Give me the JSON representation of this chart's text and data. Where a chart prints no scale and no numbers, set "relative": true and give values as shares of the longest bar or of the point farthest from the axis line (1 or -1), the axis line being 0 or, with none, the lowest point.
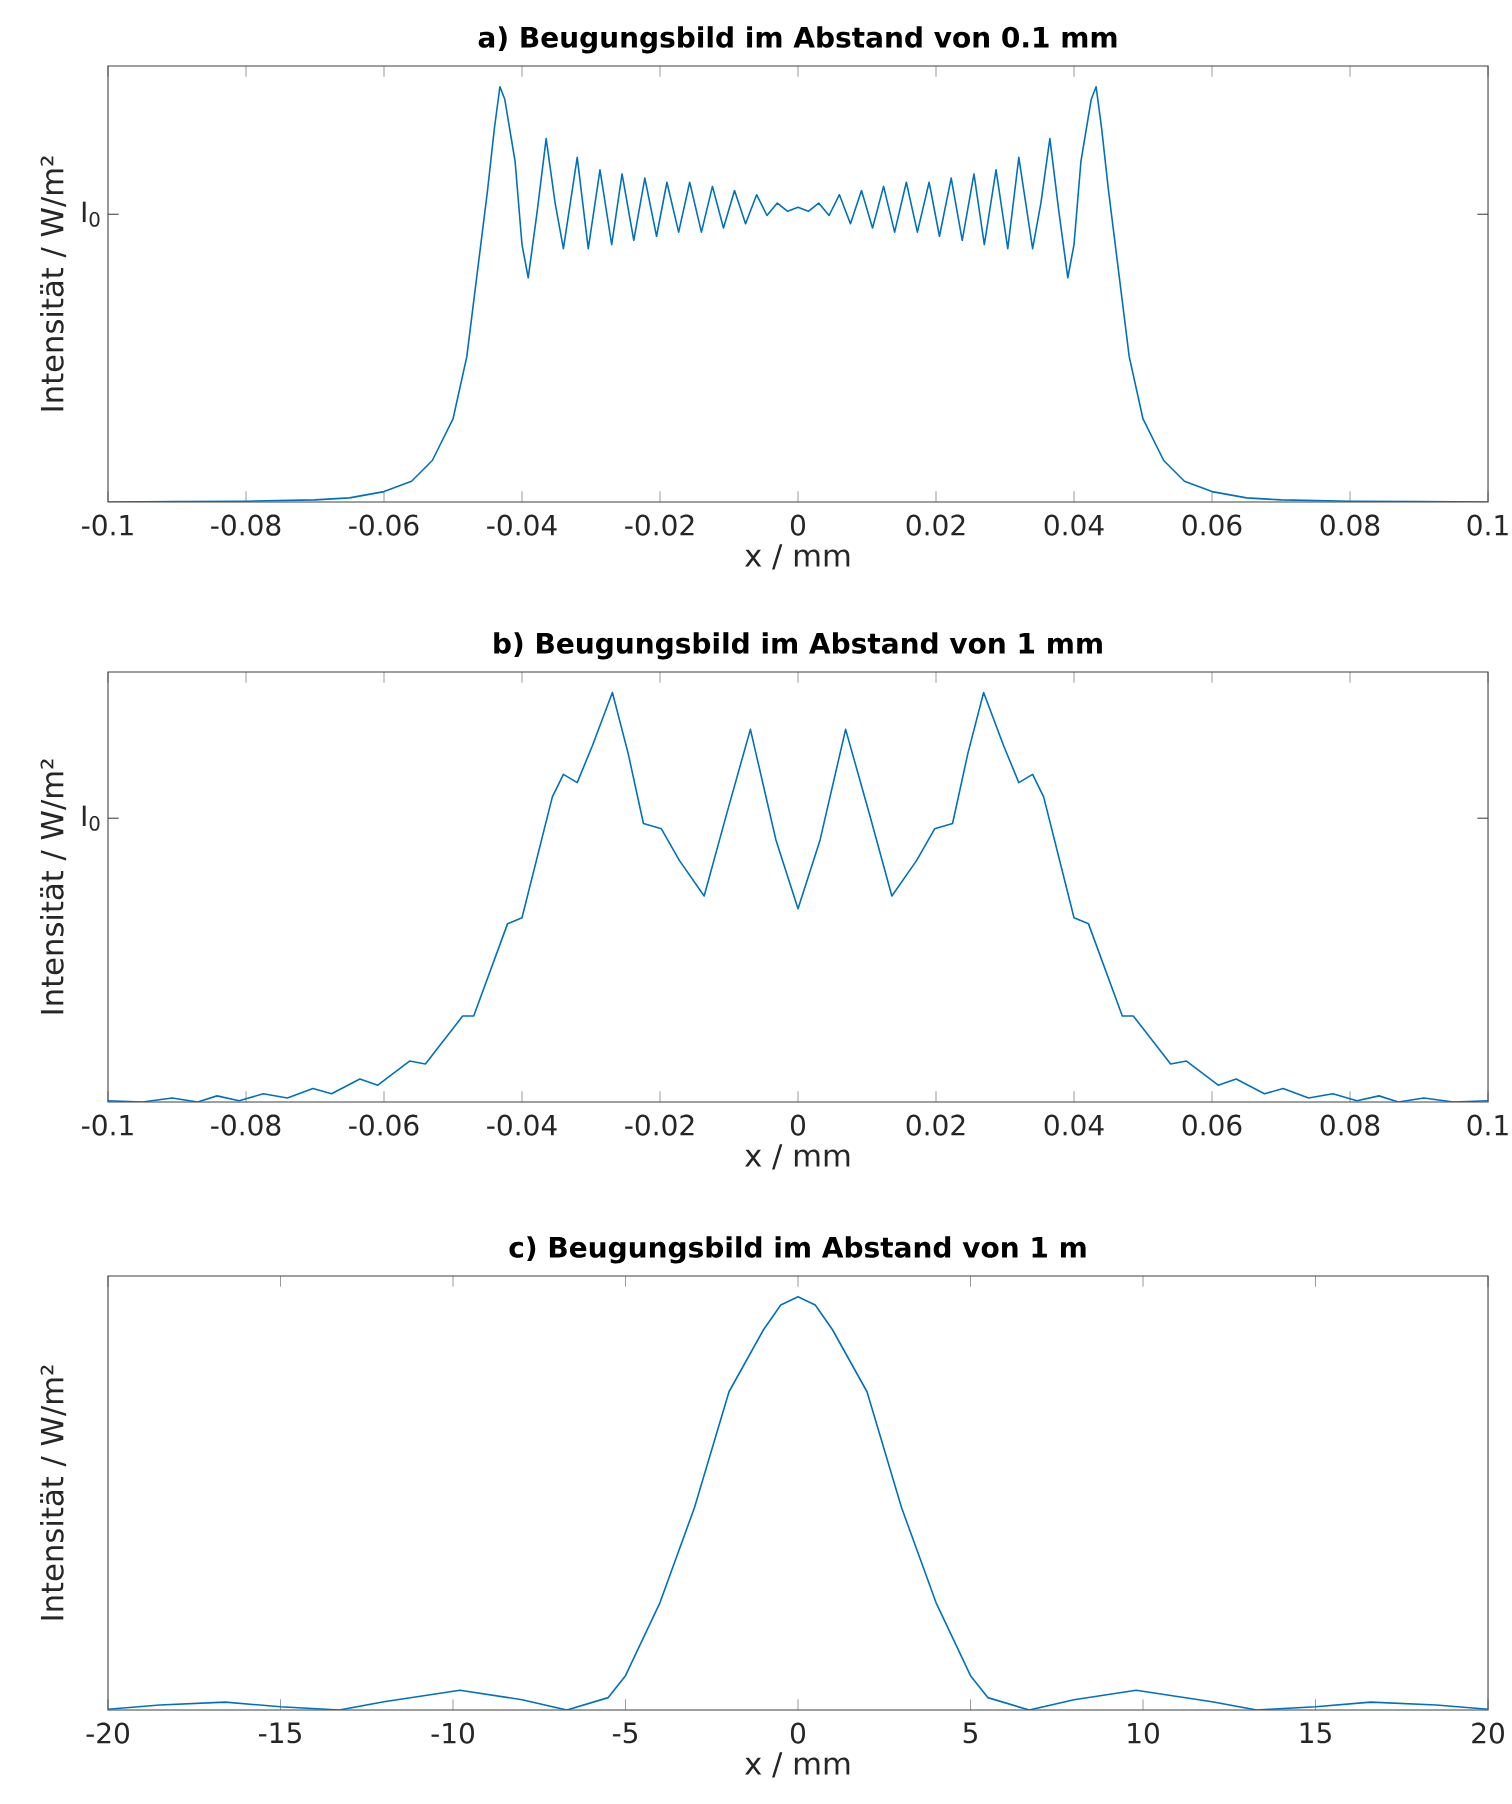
{
  "chart_data": [
    {
      "type": "line",
      "title": "a) Beugungsbild im Abstand von 0.1 mm",
      "xlabel": "x / mm",
      "ylabel": "Intensität / W/m²",
      "relative": true,
      "xlim": [
        -0.1,
        0.1
      ],
      "xticks": [
        -0.1,
        -0.08,
        -0.06,
        -0.04,
        -0.02,
        0,
        0.02,
        0.04,
        0.06,
        0.08,
        0.1
      ],
      "annotations": [
        "I$_{0}$"
      ],
      "x": [
        -0.1,
        -0.09,
        -0.08,
        -0.07,
        -0.065,
        -0.06,
        -0.056,
        -0.053,
        -0.05,
        -0.048,
        -0.0465,
        -0.045,
        -0.044,
        -0.0432,
        -0.0425,
        -0.041,
        -0.04,
        -0.0391,
        -0.0378,
        -0.0365,
        -0.0352,
        -0.034,
        -0.032,
        -0.0304,
        -0.0287,
        -0.027,
        -0.0255,
        -0.0238,
        -0.0222,
        -0.0205,
        -0.019,
        -0.0173,
        -0.0157,
        -0.014,
        -0.0124,
        -0.0108,
        -0.0092,
        -0.0076,
        -0.006,
        -0.0045,
        -0.003,
        -0.0015,
        0,
        0.0015,
        0.003,
        0.0045,
        0.006,
        0.0076,
        0.0092,
        0.0108,
        0.0124,
        0.014,
        0.0157,
        0.0173,
        0.019,
        0.0205,
        0.0222,
        0.0238,
        0.0255,
        0.027,
        0.0287,
        0.0304,
        0.032,
        0.034,
        0.0352,
        0.0365,
        0.0378,
        0.0391,
        0.04,
        0.041,
        0.0425,
        0.0432,
        0.044,
        0.045,
        0.0465,
        0.048,
        0.05,
        0.053,
        0.056,
        0.06,
        0.065,
        0.07,
        0.08,
        0.09,
        0.1
      ],
      "series": [
        {
          "color": "#0072bd",
          "values": [
            0,
            0.001,
            0.002,
            0.005,
            0.01,
            0.025,
            0.05,
            0.1,
            0.2,
            0.35,
            0.55,
            0.75,
            0.9,
            1.0,
            0.97,
            0.82,
            0.62,
            0.54,
            0.7,
            0.875,
            0.72,
            0.61,
            0.83,
            0.61,
            0.8,
            0.62,
            0.79,
            0.63,
            0.78,
            0.64,
            0.77,
            0.65,
            0.77,
            0.65,
            0.76,
            0.66,
            0.75,
            0.67,
            0.74,
            0.69,
            0.72,
            0.7,
            0.71,
            0.7,
            0.72,
            0.69,
            0.74,
            0.67,
            0.75,
            0.66,
            0.76,
            0.65,
            0.77,
            0.65,
            0.77,
            0.64,
            0.78,
            0.63,
            0.79,
            0.62,
            0.8,
            0.61,
            0.83,
            0.61,
            0.72,
            0.875,
            0.7,
            0.54,
            0.62,
            0.82,
            0.97,
            1.0,
            0.9,
            0.75,
            0.55,
            0.35,
            0.2,
            0.1,
            0.05,
            0.025,
            0.01,
            0.005,
            0.002,
            0.001,
            0
          ]
        }
      ]
    },
    {
      "type": "line",
      "title": "b) Beugungsbild im Abstand von 1 mm",
      "xlabel": "x / mm",
      "ylabel": "Intensität / W/m²",
      "relative": true,
      "xlim": [
        -0.1,
        0.1
      ],
      "xticks": [
        -0.1,
        -0.08,
        -0.06,
        -0.04,
        -0.02,
        0,
        0.02,
        0.04,
        0.06,
        0.08,
        0.1
      ],
      "annotations": [
        "I$_{0}$"
      ],
      "x": [
        -0.1,
        -0.095,
        -0.0907,
        -0.087,
        -0.0842,
        -0.081,
        -0.0775,
        -0.074,
        -0.0703,
        -0.0676,
        -0.0635,
        -0.0609,
        -0.0563,
        -0.054,
        -0.0486,
        -0.047,
        -0.0421,
        -0.04,
        -0.0356,
        -0.034,
        -0.032,
        -0.0298,
        -0.0269,
        -0.0246,
        -0.0224,
        -0.0198,
        -0.0172,
        -0.0136,
        -0.0104,
        -0.0069,
        -0.0032,
        0,
        0.0032,
        0.0069,
        0.0104,
        0.0136,
        0.0172,
        0.0198,
        0.0224,
        0.0246,
        0.0269,
        0.0298,
        0.032,
        0.034,
        0.0356,
        0.04,
        0.0421,
        0.047,
        0.0486,
        0.054,
        0.0563,
        0.0609,
        0.0635,
        0.0676,
        0.0703,
        0.074,
        0.0775,
        0.081,
        0.0842,
        0.087,
        0.0907,
        0.095,
        0.1
      ],
      "series": [
        {
          "color": "#0072bd",
          "values": [
            0.003,
            0,
            0.01,
            0,
            0.015,
            0.003,
            0.02,
            0.01,
            0.033,
            0.02,
            0.056,
            0.041,
            0.1,
            0.093,
            0.21,
            0.21,
            0.435,
            0.45,
            0.745,
            0.8,
            0.78,
            0.87,
            1.0,
            0.85,
            0.68,
            0.667,
            0.59,
            0.503,
            0.7,
            0.91,
            0.64,
            0.472,
            0.64,
            0.91,
            0.7,
            0.503,
            0.59,
            0.667,
            0.68,
            0.85,
            1.0,
            0.87,
            0.78,
            0.8,
            0.745,
            0.45,
            0.435,
            0.21,
            0.21,
            0.093,
            0.1,
            0.041,
            0.056,
            0.02,
            0.033,
            0.01,
            0.02,
            0.003,
            0.015,
            0,
            0.01,
            0,
            0.003
          ]
        }
      ]
    },
    {
      "type": "line",
      "title": "c) Beugungsbild im Abstand von 1 m",
      "xlabel": "x / mm",
      "ylabel": "Intensität / W/m²",
      "relative": true,
      "xlim": [
        -20,
        20
      ],
      "xticks": [
        -20,
        -15,
        -10,
        -5,
        0,
        5,
        10,
        15,
        20
      ],
      "x": [
        -20,
        -18.5,
        -16.6,
        -15,
        -13.3,
        -12,
        -9.8,
        -8,
        -6.7,
        -5.5,
        -5,
        -4,
        -3,
        -2,
        -1,
        -0.5,
        0,
        0.5,
        1,
        2,
        3,
        4,
        5,
        5.5,
        6.7,
        8,
        9.8,
        12,
        13.3,
        15,
        16.6,
        18.5,
        20
      ],
      "series": [
        {
          "color": "#0072bd",
          "values": [
            0.002,
            0.012,
            0.019,
            0.008,
            0,
            0.02,
            0.048,
            0.025,
            0,
            0.03,
            0.083,
            0.26,
            0.49,
            0.77,
            0.92,
            0.98,
            1.0,
            0.98,
            0.92,
            0.77,
            0.49,
            0.26,
            0.083,
            0.03,
            0,
            0.025,
            0.048,
            0.02,
            0,
            0.008,
            0.019,
            0.012,
            0.002
          ]
        }
      ]
    }
  ]
}
